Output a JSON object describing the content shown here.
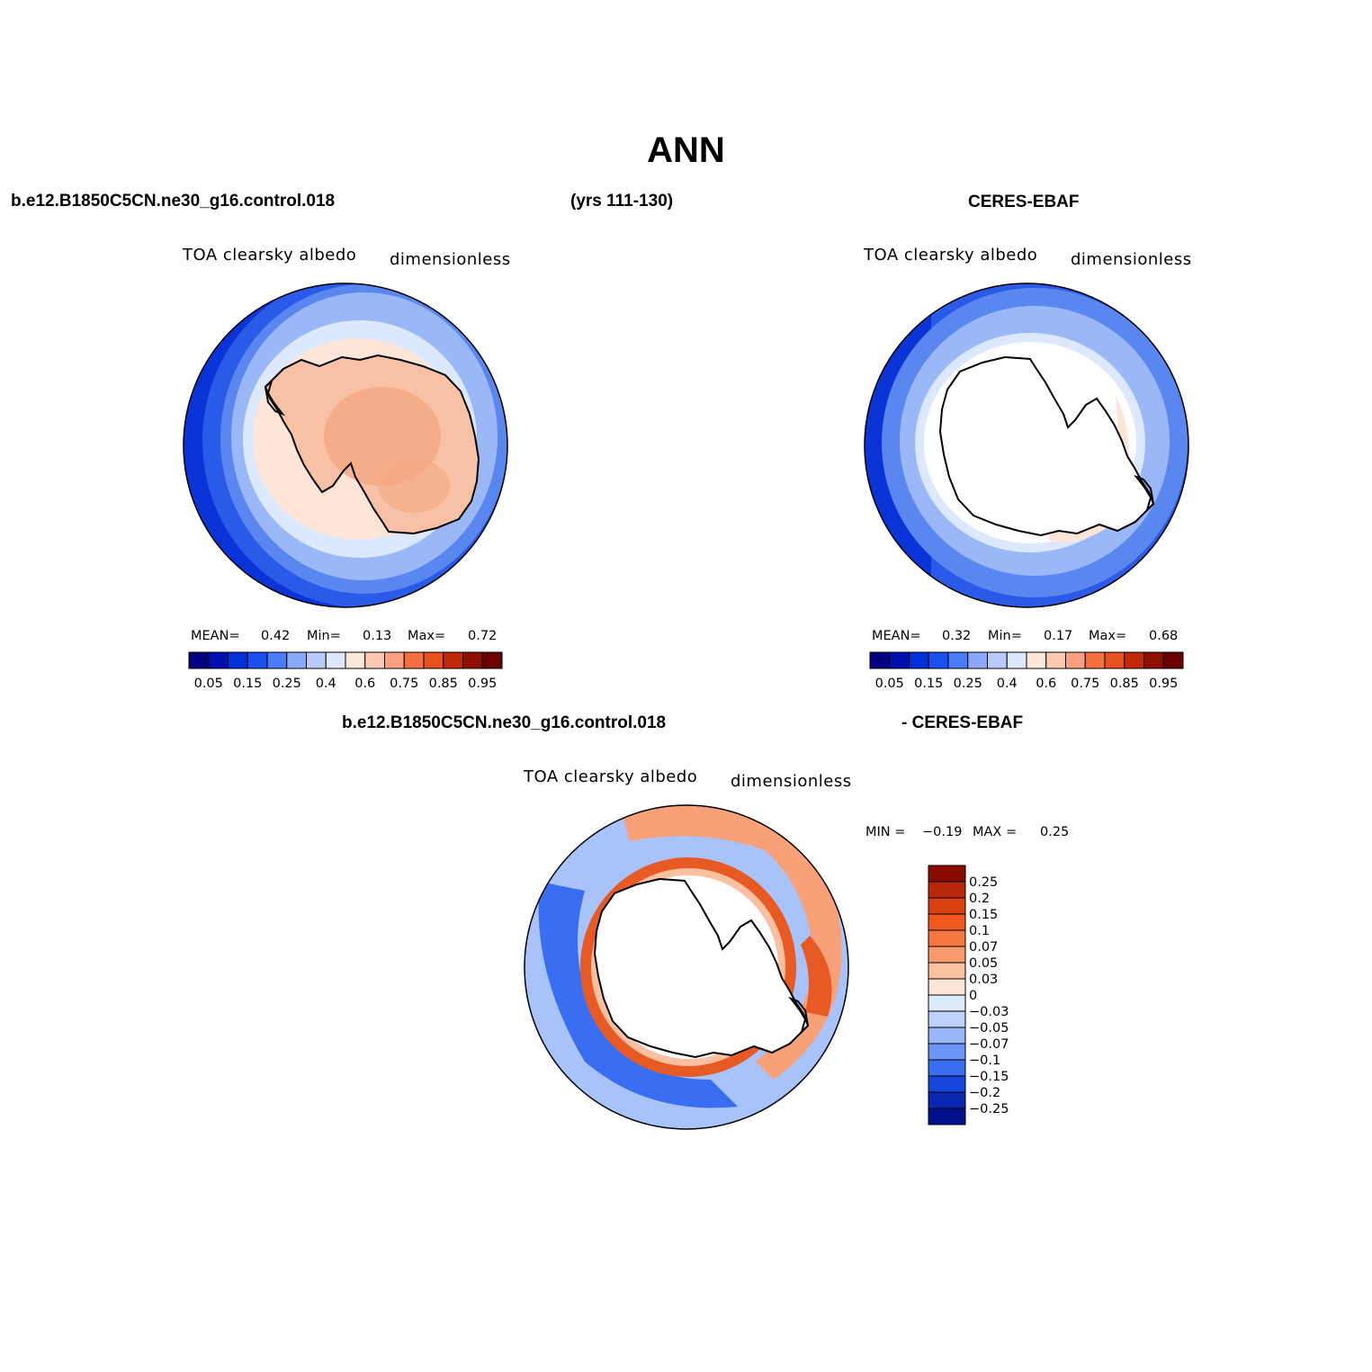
{
  "title": "ANN",
  "top_left_header": "b.e12.B1850C5CN.ne30_g16.control.018",
  "top_center_header": "(yrs 111-130)",
  "top_right_header": "CERES-EBAF",
  "bottom_header_left": "b.e12.B1850C5CN.ne30_g16.control.018",
  "bottom_header_right": "- CERES-EBAF",
  "panels": {
    "model": {
      "variable": "TOA clearsky albedo",
      "units": "dimensionless",
      "mean_label": "MEAN=",
      "mean": "0.42",
      "min_label": "Min=",
      "min": "0.13",
      "max_label": "Max=",
      "max": "0.72"
    },
    "obs": {
      "variable": "TOA clearsky albedo",
      "units": "dimensionless",
      "mean_label": "MEAN=",
      "mean": "0.32",
      "min_label": "Min=",
      "min": "0.17",
      "max_label": "Max=",
      "max": "0.68"
    },
    "diff": {
      "variable": "TOA clearsky albedo",
      "units": "dimensionless",
      "min_label": "MIN =",
      "min": "−0.19",
      "max_label": "MAX =",
      "max": "0.25"
    }
  },
  "colorbar_abs": {
    "tick_labels": [
      "0.05",
      "0.15",
      "0.25",
      "0.4",
      "0.6",
      "0.75",
      "0.85",
      "0.95"
    ],
    "colors": [
      "#000080",
      "#0010b0",
      "#0030d8",
      "#1a50f0",
      "#4a7cf5",
      "#8aa8f8",
      "#b8cbfb",
      "#dde8fe",
      "#fee8da",
      "#fbc8b0",
      "#f8a080",
      "#f47040",
      "#e85020",
      "#c02808",
      "#901000",
      "#6a0000"
    ]
  },
  "colorbar_diff": {
    "tick_labels": [
      "0.25",
      "0.2",
      "0.15",
      "0.1",
      "0.07",
      "0.05",
      "0.03",
      "0",
      "−0.03",
      "−0.05",
      "−0.07",
      "−0.1",
      "−0.15",
      "−0.2",
      "−0.25"
    ],
    "colors": [
      "#8a0a00",
      "#b82808",
      "#d84010",
      "#f05820",
      "#f47840",
      "#f89a6e",
      "#fbc0a0",
      "#fee6d6",
      "#dceafe",
      "#bcd2fc",
      "#98b6fa",
      "#6a94f7",
      "#3a6ef2",
      "#1446dc",
      "#0a28b4",
      "#00108a"
    ]
  },
  "map_colors": {
    "ocean_deep": "#0a34d8",
    "ocean_mid": "#2a5ae8",
    "ocean_light": "#5a86f0",
    "ocean_lighter": "#9ab8f8",
    "ice_edge": "#dce8fd",
    "coast_pale": "#fde6d8",
    "land": "#f8c0a4",
    "land_high": "#f4a882",
    "diff_red": "#e85a24",
    "diff_red_light": "#f8a078",
    "diff_blue": "#3a6ef2",
    "diff_blue_light": "#a8c2fa"
  }
}
